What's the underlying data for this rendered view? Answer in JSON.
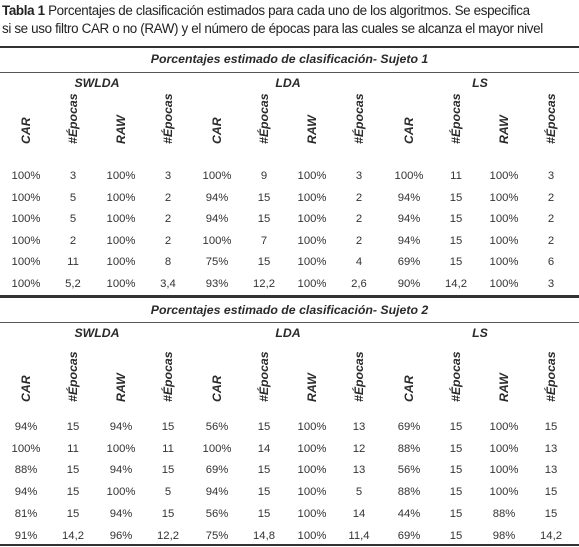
{
  "caption": {
    "label": "Tabla 1",
    "text_line1": " Porcentajes de clasificación estimados para cada uno de los algoritmos. Se especifica",
    "text_line2": "si se uso filtro CAR o no (RAW) y el número de épocas para las cuales se alcanza el mayor nivel"
  },
  "groups": [
    "SWLDA",
    "LDA",
    "LS"
  ],
  "columns": [
    "CAR",
    "#Épocas",
    "RAW",
    "#Épocas",
    "CAR",
    "#Épocas",
    "RAW",
    "#Épocas",
    "CAR",
    "#Épocas",
    "RAW",
    "#Épocas"
  ],
  "subjects": [
    {
      "title": "Porcentajes estimado de clasificación- Sujeto 1",
      "rows": [
        [
          "100%",
          "3",
          "100%",
          "3",
          "100%",
          "9",
          "100%",
          "3",
          "100%",
          "11",
          "100%",
          "3"
        ],
        [
          "100%",
          "5",
          "100%",
          "2",
          "94%",
          "15",
          "100%",
          "2",
          "94%",
          "15",
          "100%",
          "2"
        ],
        [
          "100%",
          "5",
          "100%",
          "2",
          "94%",
          "15",
          "100%",
          "2",
          "94%",
          "15",
          "100%",
          "2"
        ],
        [
          "100%",
          "2",
          "100%",
          "2",
          "100%",
          "7",
          "100%",
          "2",
          "94%",
          "15",
          "100%",
          "2"
        ],
        [
          "100%",
          "11",
          "100%",
          "8",
          "75%",
          "15",
          "100%",
          "4",
          "69%",
          "15",
          "100%",
          "6"
        ],
        [
          "100%",
          "5,2",
          "100%",
          "3,4",
          "93%",
          "12,2",
          "100%",
          "2,6",
          "90%",
          "14,2",
          "100%",
          "3"
        ]
      ]
    },
    {
      "title": "Porcentajes estimado de clasificación- Sujeto 2",
      "rows": [
        [
          "94%",
          "15",
          "94%",
          "15",
          "56%",
          "15",
          "100%",
          "13",
          "69%",
          "15",
          "100%",
          "15"
        ],
        [
          "100%",
          "11",
          "100%",
          "11",
          "100%",
          "14",
          "100%",
          "12",
          "88%",
          "15",
          "100%",
          "13"
        ],
        [
          "88%",
          "15",
          "94%",
          "15",
          "69%",
          "15",
          "100%",
          "13",
          "56%",
          "15",
          "100%",
          "13"
        ],
        [
          "94%",
          "15",
          "100%",
          "5",
          "94%",
          "15",
          "100%",
          "5",
          "88%",
          "15",
          "100%",
          "15"
        ],
        [
          "81%",
          "15",
          "94%",
          "15",
          "56%",
          "15",
          "100%",
          "14",
          "44%",
          "15",
          "88%",
          "15"
        ],
        [
          "91%",
          "14,2",
          "96%",
          "12,2",
          "75%",
          "14,8",
          "100%",
          "11,4",
          "69%",
          "15",
          "98%",
          "14,2"
        ]
      ]
    }
  ]
}
